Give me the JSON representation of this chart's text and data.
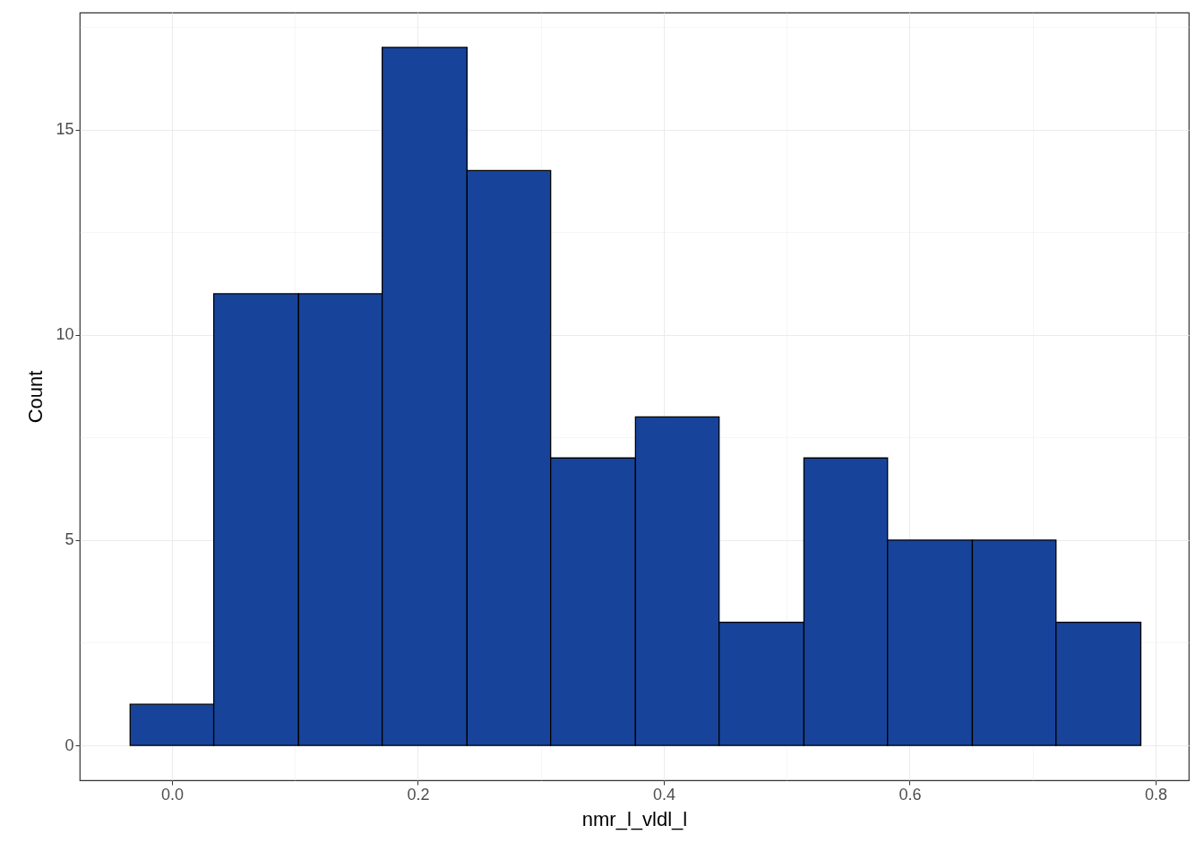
{
  "chart_data": {
    "type": "histogram",
    "xlabel": "nmr_l_vldl_l",
    "ylabel": "Count",
    "bins": [
      -0.034,
      0.034,
      0.103,
      0.171,
      0.24,
      0.308,
      0.377,
      0.445,
      0.514,
      0.582,
      0.651,
      0.719,
      0.788
    ],
    "values": [
      1,
      11,
      11,
      17,
      14,
      7,
      8,
      3,
      7,
      5,
      5,
      3
    ],
    "color": "#17449a",
    "xlim": [
      -0.075,
      0.827
    ],
    "ylim": [
      -0.85,
      17.85
    ],
    "xticks": [
      {
        "value": 0,
        "label": "0.0"
      },
      {
        "value": 0.1,
        "label": null
      },
      0.2,
      {
        "value": 0.3,
        "label": null
      },
      0.4,
      {
        "value": 0.5,
        "label": null
      },
      0.6,
      {
        "value": 0.7,
        "label": null
      },
      0.8
    ],
    "yticks": [
      0,
      {
        "value": 2.5,
        "label": null
      },
      5,
      {
        "value": 7.5,
        "label": null
      },
      10,
      {
        "value": 12.5,
        "label": null
      },
      15,
      {
        "value": 17.5,
        "label": null
      }
    ],
    "grid": true
  }
}
